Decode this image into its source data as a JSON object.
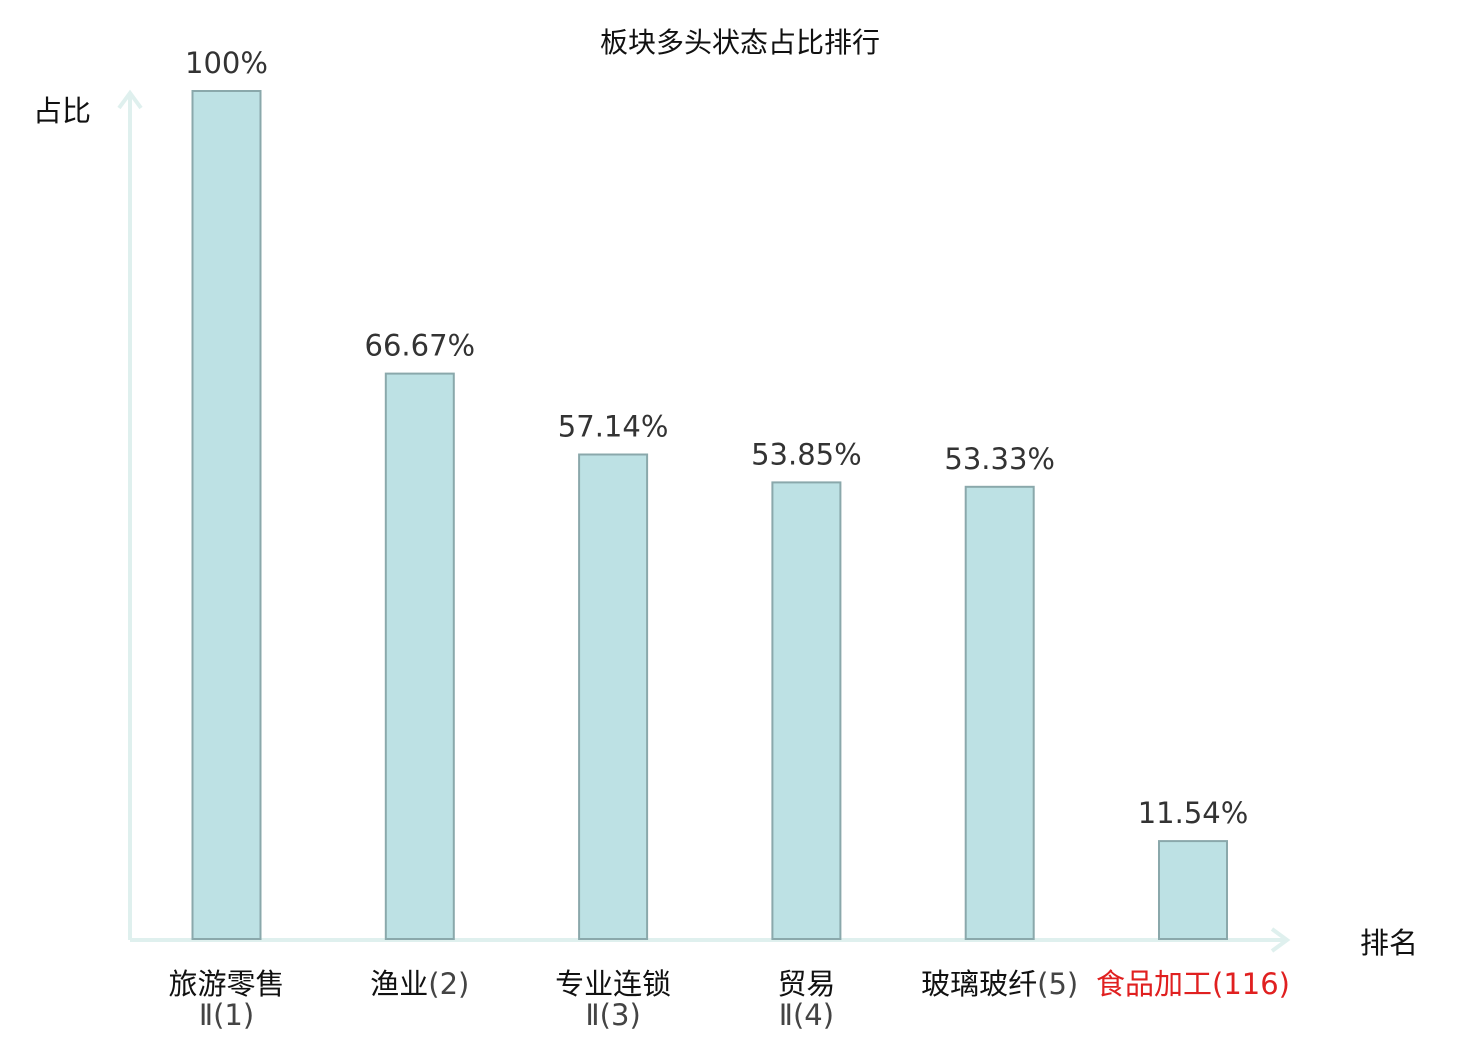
{
  "chart_data": {
    "type": "bar",
    "title": "板块多头状态占比排行",
    "ylabel": "占比",
    "xlabel": "排名",
    "ylim": [
      0,
      100
    ],
    "grid": false,
    "legend": "none",
    "categories": [
      {
        "name": "旅游零售",
        "rank": "Ⅱ(1)",
        "highlight": false
      },
      {
        "name": "渔业",
        "rank": "(2)",
        "highlight": false
      },
      {
        "name": "专业连锁",
        "rank": "Ⅱ(3)",
        "highlight": false
      },
      {
        "name": "贸易",
        "rank": "Ⅱ(4)",
        "highlight": false
      },
      {
        "name": "玻璃玻纤",
        "rank": "(5)",
        "highlight": false
      },
      {
        "name": "食品加工",
        "rank": "(116)",
        "highlight": true
      }
    ],
    "values": [
      100,
      66.67,
      57.14,
      53.85,
      53.33,
      11.54
    ],
    "value_labels": [
      "100%",
      "66.67%",
      "57.14%",
      "53.85%",
      "53.33%",
      "11.54%"
    ]
  },
  "colors": {
    "bar_fill": "#bde1e4",
    "bar_stroke": "#8aa8ab",
    "axis": "#dff0ee",
    "highlight": "#e02020",
    "text": "#111111"
  }
}
